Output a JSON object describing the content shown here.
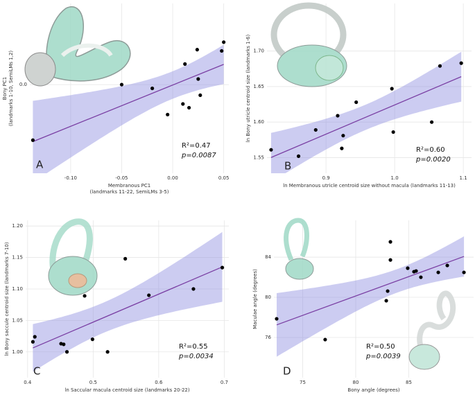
{
  "chart_data": [
    {
      "type": "scatter",
      "panel": "A",
      "grid": true,
      "point_color": "#000000",
      "fit_color": "#7a3fa3",
      "band_color": "#8f8fe0",
      "xlabel": [
        "Membranous PC1",
        "(landmarks 11-22, SemiLMs 3-5)"
      ],
      "ylabel": [
        "Bony PC1",
        "(landmarks 1-10, SemiLMs 1,2)"
      ],
      "annotations": [
        "R²=0.47",
        "p=0.0087"
      ],
      "x": [
        -0.137,
        -0.05,
        -0.02,
        -0.005,
        0.01,
        0.012,
        0.016,
        0.024,
        0.025,
        0.027,
        0.048,
        0.05
      ],
      "values": [
        -0.089,
        0.0,
        -0.006,
        -0.048,
        -0.031,
        0.033,
        -0.037,
        0.056,
        0.009,
        -0.017,
        0.054,
        0.068
      ],
      "xlim": [
        -0.14,
        0.055
      ],
      "ylim": [
        -0.142,
        0.13
      ],
      "xticks": [
        {
          "value": -0.1,
          "label": "-0.10"
        },
        {
          "value": -0.05,
          "label": "-0.05"
        },
        {
          "value": 0,
          "label": "0.00"
        },
        {
          "value": 0.05,
          "label": "0.05"
        }
      ],
      "yticks": [
        {
          "value": 0,
          "label": "0.0"
        }
      ]
    },
    {
      "type": "scatter",
      "panel": "B",
      "grid": true,
      "point_color": "#000000",
      "fit_color": "#7a3fa3",
      "band_color": "#8f8fe0",
      "xlabel": [
        "ln Membranous utricle centroid size without macula (landmarks 11-13)"
      ],
      "ylabel": [
        "ln Bony utricle centroid size (landmarks 1-6)"
      ],
      "annotations": [
        "R²=0.60",
        "p=0.0020"
      ],
      "x": [
        0.82,
        0.86,
        0.885,
        0.917,
        0.923,
        0.925,
        0.944,
        0.996,
        0.998,
        1.054,
        1.066,
        1.097
      ],
      "values": [
        1.561,
        1.552,
        1.589,
        1.609,
        1.563,
        1.581,
        1.628,
        1.647,
        1.586,
        1.6,
        1.679,
        1.683
      ],
      "xlim": [
        0.814,
        1.112
      ],
      "ylim": [
        1.528,
        1.767
      ],
      "xticks": [
        0.9,
        {
          "value": 1,
          "label": "1.0"
        },
        1.1
      ],
      "yticks": [
        1.55,
        {
          "value": 1.6,
          "label": "1.60"
        },
        1.65,
        {
          "value": 1.7,
          "label": "1.70"
        }
      ]
    },
    {
      "type": "scatter",
      "panel": "C",
      "grid": true,
      "point_color": "#000000",
      "fit_color": "#7a3fa3",
      "band_color": "#8f8fe0",
      "xlabel": [
        "ln Saccular macula centroid size (landmarks 20-22)"
      ],
      "ylabel": [
        "ln Bony saccule centroid size (landmarks 7-10)"
      ],
      "annotations": [
        "R²=0.55",
        "p=0.0034"
      ],
      "x": [
        0.408,
        0.411,
        0.451,
        0.455,
        0.46,
        0.487,
        0.499,
        0.522,
        0.549,
        0.585,
        0.653,
        0.697
      ],
      "values": [
        1.016,
        1.024,
        1.013,
        1.012,
        1.0,
        1.089,
        1.02,
        1.0,
        1.148,
        1.09,
        1.1,
        1.134
      ],
      "xlim": [
        0.397,
        0.707
      ],
      "ylim": [
        0.959,
        1.209
      ],
      "xticks": [
        0.4,
        0.5,
        0.6,
        0.7
      ],
      "yticks": [
        {
          "value": 1,
          "label": "1.00"
        },
        1.05,
        {
          "value": 1.1,
          "label": "1.10"
        },
        1.15,
        {
          "value": 1.2,
          "label": "1.20"
        }
      ]
    },
    {
      "type": "scatter",
      "panel": "D",
      "grid": true,
      "point_color": "#000000",
      "fit_color": "#7a3fa3",
      "band_color": "#8f8fe0",
      "xlabel": [
        "Bony angle (degrees)"
      ],
      "ylabel": [
        "Maculae angle (degrees)"
      ],
      "annotations": [
        "R²=0.50",
        "p=0.0039"
      ],
      "x": [
        72.55,
        77.12,
        82.88,
        83.01,
        83.27,
        83.27,
        84.9,
        85.49,
        85.69,
        86.14,
        87.78,
        88.63,
        90.2
      ],
      "values": [
        77.86,
        75.79,
        79.66,
        80.62,
        85.52,
        83.72,
        82.9,
        82.55,
        82.62,
        82.0,
        82.48,
        83.17,
        82.48
      ],
      "xlim": [
        72.29,
        91.11
      ],
      "ylim": [
        72.0,
        87.66
      ],
      "xticks": [
        75,
        80,
        85
      ],
      "yticks": [
        76,
        80,
        84
      ]
    }
  ]
}
